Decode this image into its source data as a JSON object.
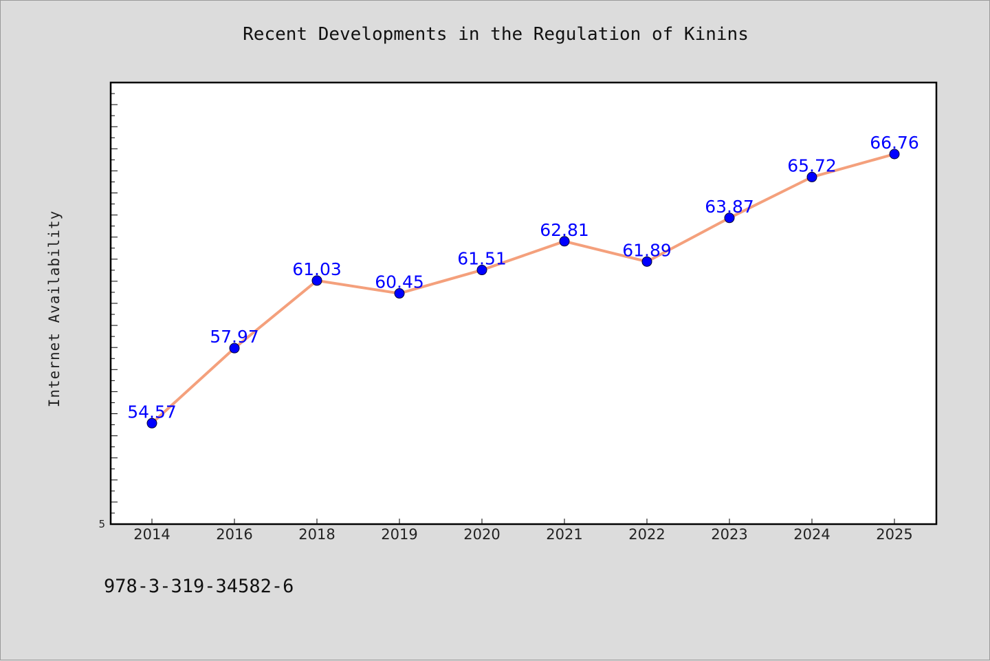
{
  "chart_data": {
    "type": "line",
    "title": "Recent Developments in the Regulation of Kinins",
    "xlabel": "",
    "ylabel": "Internet Availability",
    "categories": [
      "2014",
      "2016",
      "2018",
      "2019",
      "2020",
      "2021",
      "2022",
      "2023",
      "2024",
      "2025"
    ],
    "series": [
      {
        "values": [
          54.57,
          57.97,
          61.03,
          60.45,
          61.51,
          62.81,
          61.89,
          63.87,
          65.72,
          66.76
        ]
      }
    ],
    "data_labels": [
      "54.57",
      "57.97",
      "61.03",
      "60.45",
      "61.51",
      "62.81",
      "61.89",
      "63.87",
      "65.72",
      "66.76"
    ],
    "y_tick_label": "5",
    "ylim": [
      50,
      70
    ],
    "grid": false,
    "colors": {
      "line": "#f4a07c",
      "marker": "#0000ff",
      "label": "#0000ff",
      "background": "#dcdcdc",
      "plot_bg": "#ffffff"
    }
  },
  "footer": {
    "text": "978-3-319-34582-6"
  }
}
